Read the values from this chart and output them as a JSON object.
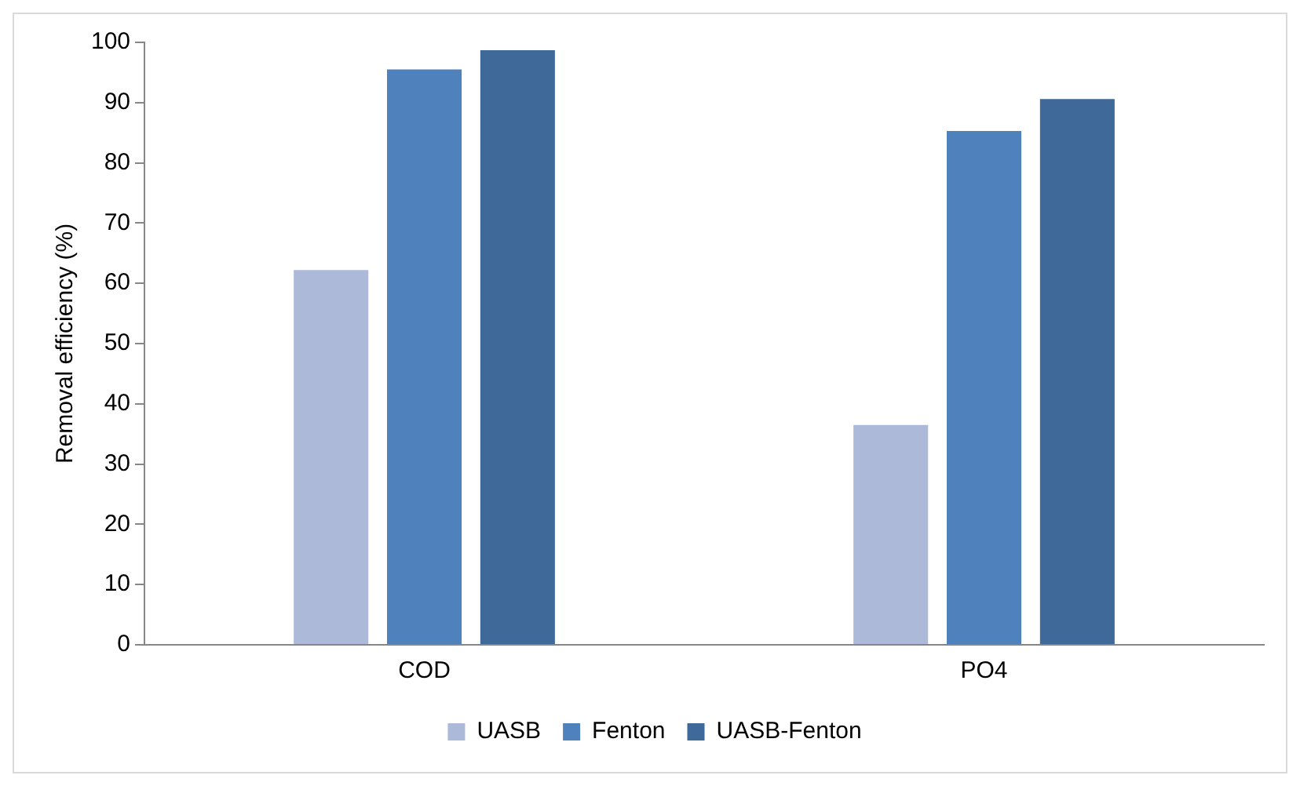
{
  "chart_data": {
    "type": "bar",
    "ylabel": "Removal efficiency (%)",
    "categories": [
      "COD",
      "PO4"
    ],
    "series": [
      {
        "name": "UASB",
        "color": "#adb9d8",
        "values": [
          62.2,
          36.5
        ]
      },
      {
        "name": "Fenton",
        "color": "#4f81bd",
        "values": [
          95.5,
          85.3
        ]
      },
      {
        "name": "UASB-Fenton",
        "color": "#3f6998",
        "values": [
          98.7,
          90.6
        ]
      }
    ],
    "ylim": [
      0,
      100
    ],
    "yticks": [
      0,
      10,
      20,
      30,
      40,
      50,
      60,
      70,
      80,
      90,
      100
    ],
    "grid": false,
    "legend": "bottom"
  }
}
